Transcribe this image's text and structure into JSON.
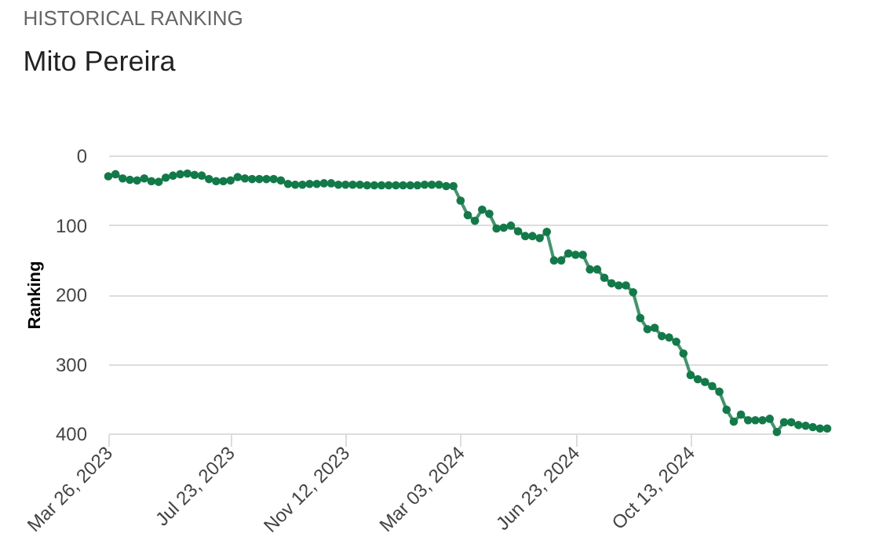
{
  "chart_data": {
    "type": "line",
    "title": "HISTORICAL RANKING",
    "subtitle": "Mito Pereira",
    "ylabel": "Ranking",
    "x": [
      "2023-03-26",
      "2023-04-02",
      "2023-04-09",
      "2023-04-16",
      "2023-04-23",
      "2023-04-30",
      "2023-05-07",
      "2023-05-14",
      "2023-05-21",
      "2023-05-28",
      "2023-06-04",
      "2023-06-11",
      "2023-06-18",
      "2023-06-25",
      "2023-07-02",
      "2023-07-09",
      "2023-07-16",
      "2023-07-23",
      "2023-07-30",
      "2023-08-06",
      "2023-08-13",
      "2023-08-20",
      "2023-08-27",
      "2023-09-03",
      "2023-09-10",
      "2023-09-17",
      "2023-09-24",
      "2023-10-01",
      "2023-10-08",
      "2023-10-15",
      "2023-10-22",
      "2023-10-29",
      "2023-11-05",
      "2023-11-12",
      "2023-11-19",
      "2023-11-26",
      "2023-12-03",
      "2023-12-10",
      "2023-12-17",
      "2023-12-24",
      "2023-12-31",
      "2024-01-07",
      "2024-01-14",
      "2024-01-21",
      "2024-01-28",
      "2024-02-04",
      "2024-02-11",
      "2024-02-18",
      "2024-02-25",
      "2024-03-03",
      "2024-03-10",
      "2024-03-17",
      "2024-03-24",
      "2024-03-31",
      "2024-04-07",
      "2024-04-14",
      "2024-04-21",
      "2024-04-28",
      "2024-05-05",
      "2024-05-12",
      "2024-05-19",
      "2024-05-26",
      "2024-06-02",
      "2024-06-09",
      "2024-06-16",
      "2024-06-23",
      "2024-06-30",
      "2024-07-07",
      "2024-07-14",
      "2024-07-21",
      "2024-07-28",
      "2024-08-04",
      "2024-08-11",
      "2024-08-18",
      "2024-08-25",
      "2024-09-01",
      "2024-09-08",
      "2024-09-15",
      "2024-09-22",
      "2024-09-29",
      "2024-10-06",
      "2024-10-13",
      "2024-10-20",
      "2024-10-27",
      "2024-11-03",
      "2024-11-10",
      "2024-11-17",
      "2024-11-24",
      "2024-12-01",
      "2024-12-08",
      "2024-12-15",
      "2024-12-22",
      "2024-12-29",
      "2025-01-05",
      "2025-01-12",
      "2025-01-19",
      "2025-01-26",
      "2025-02-02",
      "2025-02-09",
      "2025-02-16",
      "2025-02-23"
    ],
    "series": [
      {
        "color": "#127a48",
        "values": [
          30,
          27,
          33,
          35,
          36,
          33,
          37,
          38,
          32,
          29,
          27,
          26,
          28,
          29,
          34,
          37,
          37,
          36,
          31,
          33,
          34,
          34,
          34,
          34,
          36,
          41,
          42,
          42,
          41,
          41,
          40,
          40,
          42,
          42,
          42,
          42,
          43,
          43,
          43,
          43,
          43,
          43,
          43,
          43,
          42,
          42,
          42,
          44,
          44,
          65,
          86,
          94,
          78,
          84,
          105,
          104,
          101,
          109,
          116,
          116,
          119,
          110,
          151,
          151,
          141,
          143,
          143,
          164,
          164,
          176,
          184,
          187,
          187,
          197,
          234,
          250,
          248,
          260,
          262,
          268,
          285,
          316,
          322,
          326,
          332,
          340,
          366,
          383,
          373,
          381,
          381,
          381,
          379,
          398,
          384,
          384,
          388,
          389,
          391,
          393,
          393
        ]
      }
    ],
    "xlim": [
      "2023-03-26",
      "2025-02-23"
    ],
    "xticks": [
      {
        "value": "2023-03-26",
        "label": "Mar 26, 2023"
      },
      {
        "value": "2023-07-23",
        "label": "Jul 23, 2023"
      },
      {
        "value": "2023-11-12",
        "label": "Nov 12, 2023"
      },
      {
        "value": "2024-03-03",
        "label": "Mar 03, 2024"
      },
      {
        "value": "2024-06-23",
        "label": "Jun 23, 2024"
      },
      {
        "value": "2024-10-13",
        "label": "Oct 13, 2024"
      }
    ],
    "ylim": [
      400,
      0
    ],
    "yticks": [
      0,
      100,
      200,
      300,
      400
    ],
    "grid": "y",
    "marker": "circle",
    "line_style": "solid"
  }
}
